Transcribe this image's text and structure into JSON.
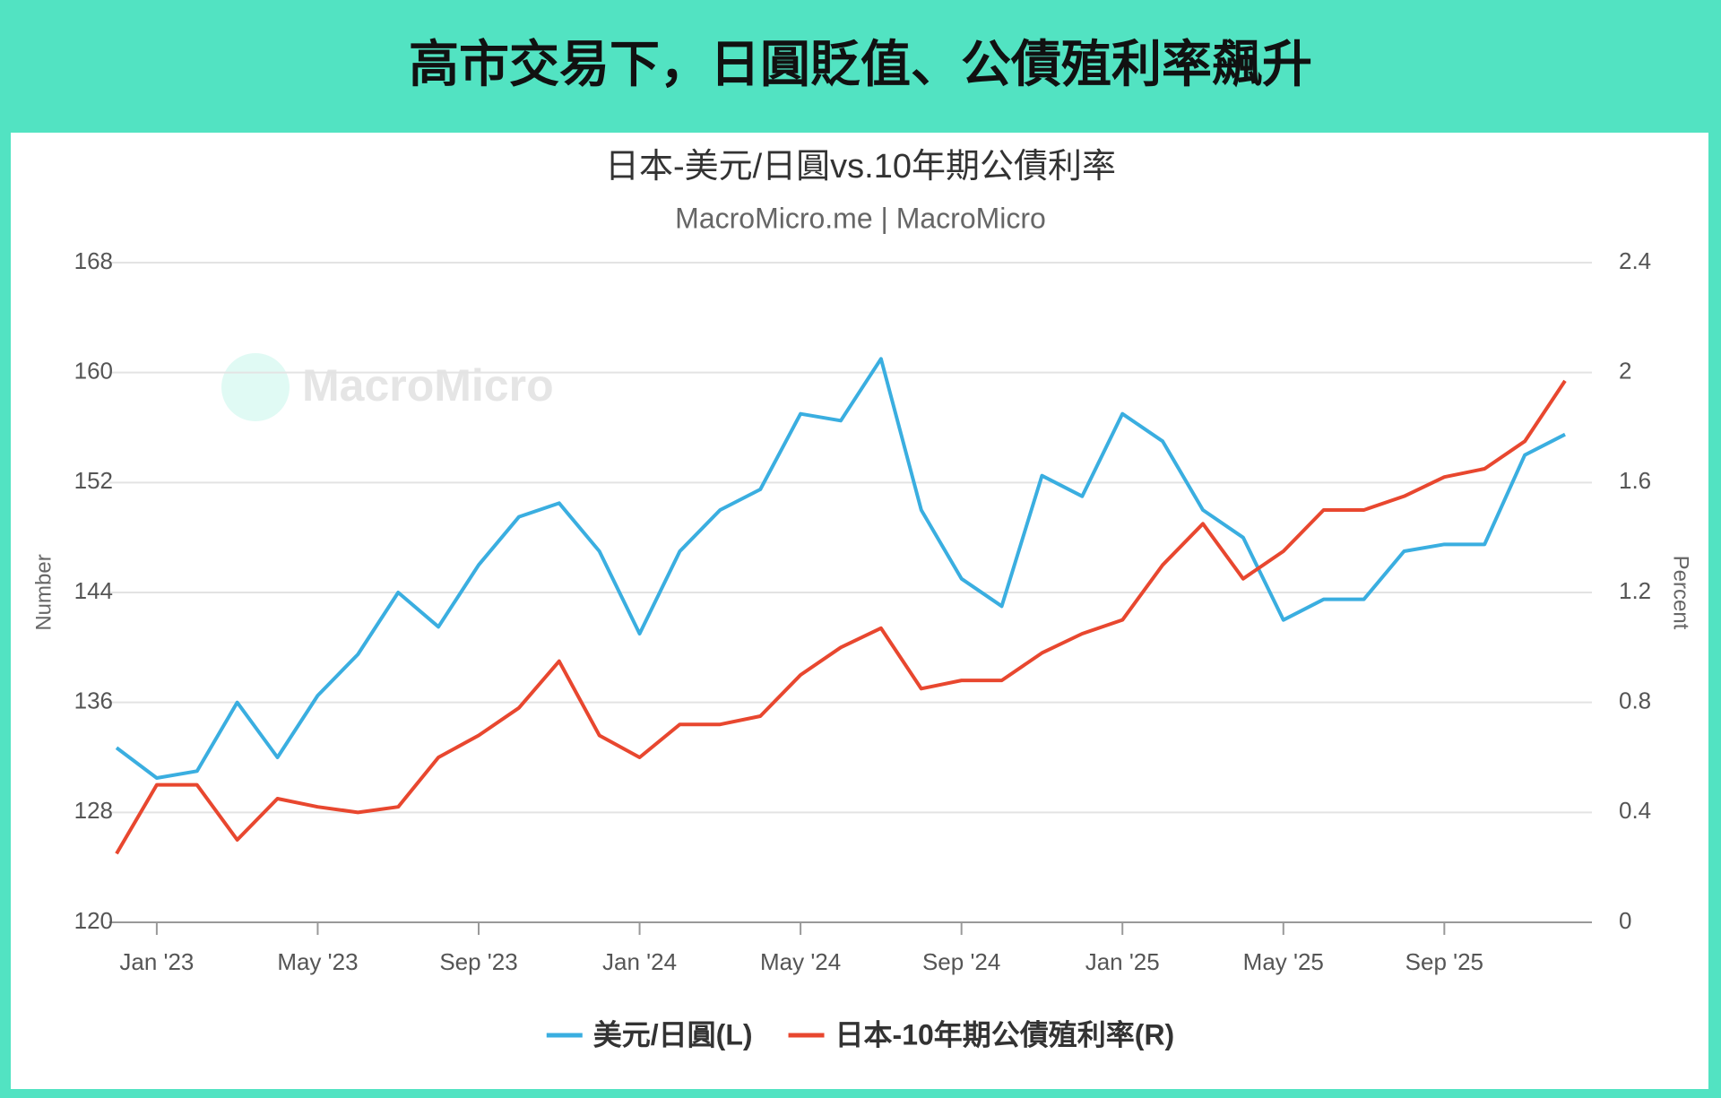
{
  "header": {
    "title": "高市交易下，日圓貶值、公債殖利率飆升"
  },
  "chart_data": {
    "type": "line",
    "title": "日本-美元/日圓vs.10年期公債利率",
    "subtitle": "MacroMicro.me | MacroMicro",
    "watermark": "MacroMicro",
    "y_label": "Number",
    "y2_label": "Percent",
    "x": [
      "2022-12",
      "2023-01",
      "2023-02",
      "2023-03",
      "2023-04",
      "2023-05",
      "2023-06",
      "2023-07",
      "2023-08",
      "2023-09",
      "2023-10",
      "2023-11",
      "2023-12",
      "2024-01",
      "2024-02",
      "2024-03",
      "2024-04",
      "2024-05",
      "2024-06",
      "2024-07",
      "2024-08",
      "2024-09",
      "2024-10",
      "2024-11",
      "2024-12",
      "2025-01",
      "2025-02",
      "2025-03",
      "2025-04",
      "2025-05",
      "2025-06",
      "2025-07",
      "2025-08",
      "2025-09",
      "2025-10",
      "2025-11",
      "2025-12"
    ],
    "xlim": [
      "2022-12",
      "2025-12"
    ],
    "xticks": [
      {
        "value": "2023-01",
        "label": "Jan '23"
      },
      {
        "value": "2023-05",
        "label": "May '23"
      },
      {
        "value": "2023-09",
        "label": "Sep '23"
      },
      {
        "value": "2024-01",
        "label": "Jan '24"
      },
      {
        "value": "2024-05",
        "label": "May '24"
      },
      {
        "value": "2024-09",
        "label": "Sep '24"
      },
      {
        "value": "2025-01",
        "label": "Jan '25"
      },
      {
        "value": "2025-05",
        "label": "May '25"
      },
      {
        "value": "2025-09",
        "label": "Sep '25"
      }
    ],
    "ylim": [
      120,
      168
    ],
    "yticks": [
      120,
      128,
      136,
      144,
      152,
      160,
      168
    ],
    "y2lim": [
      0,
      2.4
    ],
    "y2ticks": [
      0,
      0.4,
      0.8,
      1.2,
      1.6,
      2,
      2.4
    ],
    "grid": true,
    "legend": "bottom",
    "series": [
      {
        "name": "美元/日圓(L)",
        "color": "#3aaee0",
        "values": [
          132.7,
          130.5,
          131,
          136,
          132,
          136.5,
          139.5,
          144,
          141.5,
          146,
          149.5,
          150.5,
          147,
          141,
          147,
          150,
          151.5,
          157,
          156.5,
          161,
          150,
          145,
          143,
          152.5,
          151,
          157,
          155,
          150,
          148,
          142,
          143.5,
          143.5,
          147,
          147.5,
          147.5,
          154,
          155.5
        ]
      },
      {
        "name": "日本-10年期公債殖利率(R)",
        "color": "#e8472f",
        "axis": "y2",
        "values": [
          0.25,
          0.5,
          0.5,
          0.3,
          0.45,
          0.42,
          0.4,
          0.42,
          0.6,
          0.68,
          0.78,
          0.95,
          0.68,
          0.6,
          0.72,
          0.72,
          0.75,
          0.9,
          1.0,
          1.07,
          0.85,
          0.88,
          0.88,
          0.98,
          1.05,
          1.1,
          1.3,
          1.45,
          1.25,
          1.35,
          1.5,
          1.5,
          1.55,
          1.62,
          1.65,
          1.75,
          1.97
        ]
      }
    ]
  }
}
